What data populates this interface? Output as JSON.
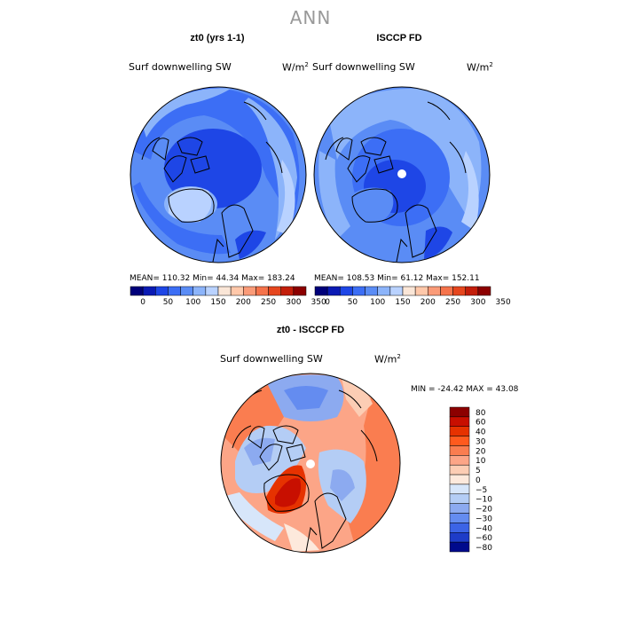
{
  "figure_title": "ANN",
  "panels": [
    {
      "title": "zt0 (yrs 1-1)",
      "variable": "Surf downwelling SW",
      "units": "W/m",
      "units_exp": "2",
      "stats": "MEAN= 110.32   Min=   44.34   Max= 183.24",
      "colorbar_labels": [
        "0",
        "50",
        "100",
        "150",
        "200",
        "250",
        "300",
        "350"
      ]
    },
    {
      "title": "ISCCP FD",
      "variable": "Surf downwelling SW",
      "units": "W/m",
      "units_exp": "2",
      "stats": "MEAN= 108.53   Min=   61.12   Max= 152.11",
      "colorbar_labels": [
        "0",
        "50",
        "100",
        "150",
        "200",
        "250",
        "300",
        "350"
      ]
    },
    {
      "title": "zt0 - ISCCP FD",
      "variable": "Surf downwelling SW",
      "units": "W/m",
      "units_exp": "2",
      "stats": "MIN = -24.42  MAX =   43.08",
      "colorbar_labels": [
        "80",
        "60",
        "40",
        "30",
        "20",
        "10",
        "5",
        "0",
        "−5",
        "−10",
        "−20",
        "−30",
        "−40",
        "−60",
        "−80"
      ]
    }
  ],
  "colors": {
    "abs_scale": [
      "#00007a",
      "#0a1ab4",
      "#1e46e6",
      "#3c6ef5",
      "#5a8cf5",
      "#8cb4fa",
      "#b9d2ff",
      "#fae6d7",
      "#ffc8aa",
      "#fa9b78",
      "#f5734b",
      "#e6461e",
      "#c31e0a",
      "#8c0000"
    ],
    "diff_scale": [
      "#8c0000",
      "#c80f00",
      "#e63200",
      "#ff5a1e",
      "#fa7d50",
      "#fca587",
      "#fccdb4",
      "#fde9dc",
      "#d7e6fa",
      "#b4cdf5",
      "#8caaf0",
      "#648cf0",
      "#3c64e6",
      "#1e3cc8",
      "#000a8c"
    ],
    "land_outline": "#000000"
  }
}
